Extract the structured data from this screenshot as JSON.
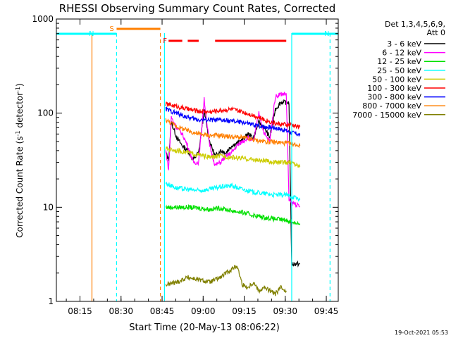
{
  "chart_data": {
    "type": "line",
    "title": "RHESSI Observing Summary Count Rates, Corrected",
    "ylabel_main": "Corrected Count Rate (s",
    "ylabel_sup1": "-1",
    "ylabel_mid": " detector",
    "ylabel_sup2": "-1",
    "ylabel_end": ")",
    "xlabel": "Start Time (20-May-13 08:06:22)",
    "timestamp": "19-Oct-2021 05:53",
    "xlim_minutes": [
      0,
      103
    ],
    "ylim": [
      1,
      1000
    ],
    "ylog": true,
    "x_ticks": [
      {
        "label": "08:15",
        "m": 8.63
      },
      {
        "label": "08:30",
        "m": 23.63
      },
      {
        "label": "08:45",
        "m": 38.63
      },
      {
        "label": "09:00",
        "m": 53.63
      },
      {
        "label": "09:15",
        "m": 68.63
      },
      {
        "label": "09:30",
        "m": 83.63
      },
      {
        "label": "09:45",
        "m": 98.63
      }
    ],
    "y_ticks": [
      {
        "label": "1",
        "v": 1
      },
      {
        "label": "10",
        "v": 10
      },
      {
        "label": "100",
        "v": 100
      },
      {
        "label": "1000",
        "v": 1000
      }
    ],
    "legend": {
      "placement": "right",
      "header1": "Det 1,3,4,5,6,9,",
      "header2": "Att 0",
      "entries": [
        {
          "name": "3 - 6 keV",
          "color": "#000000"
        },
        {
          "name": "6 - 12 keV",
          "color": "#ff00ff"
        },
        {
          "name": "12 - 25 keV",
          "color": "#00e000"
        },
        {
          "name": "25 - 50 keV",
          "color": "#00ffff"
        },
        {
          "name": "50 - 100 keV",
          "color": "#cccc00"
        },
        {
          "name": "100 - 300 keV",
          "color": "#ff0000"
        },
        {
          "name": "300 - 800 keV",
          "color": "#0000ff"
        },
        {
          "name": "800 - 7000 keV",
          "color": "#ff7f00"
        },
        {
          "name": "7000 - 15000 keV",
          "color": "#808000"
        }
      ]
    },
    "flags": [
      {
        "label": "S",
        "color": "#ff7f00",
        "start": 22.0,
        "end": 38.0
      },
      {
        "label": "N",
        "color": "#00ffff",
        "start": 0.0,
        "end": 22.0
      },
      {
        "label": "N",
        "color": "#00ffff",
        "start": 86.0,
        "end": 103.0
      },
      {
        "label": "F",
        "color": "#ff0000",
        "segments": [
          [
            41.0,
            46.0
          ],
          [
            48.0,
            52.0
          ],
          [
            58.0,
            84.0
          ]
        ]
      }
    ],
    "vertical_markers": [
      {
        "m": 13.0,
        "color": "#ff7f00",
        "style": "solid"
      },
      {
        "m": 22.0,
        "color": "#00ffff",
        "style": "dashed"
      },
      {
        "m": 38.0,
        "color": "#ff7f00",
        "style": "dashed"
      },
      {
        "m": 39.5,
        "color": "#00ffff",
        "style": "solid"
      },
      {
        "m": 86.0,
        "color": "#00ffff",
        "style": "solid"
      },
      {
        "m": 100.0,
        "color": "#00ffff",
        "style": "dashed"
      }
    ],
    "series": [
      {
        "name": "3 - 6 keV",
        "color": "#000000",
        "x": [
          40,
          41,
          42,
          44,
          46,
          48,
          50,
          52,
          54,
          56,
          58,
          60,
          62,
          64,
          66,
          68,
          70,
          72,
          74,
          76,
          78,
          80,
          82,
          84,
          85,
          86,
          86.5,
          89
        ],
        "y": [
          38,
          32,
          80,
          55,
          45,
          40,
          32,
          38,
          105,
          50,
          35,
          40,
          38,
          45,
          48,
          52,
          60,
          55,
          80,
          70,
          55,
          110,
          130,
          130,
          130,
          2.5,
          2.5,
          2.5
        ]
      },
      {
        "name": "6 - 12 keV",
        "color": "#ff00ff",
        "x": [
          40,
          41,
          42,
          44,
          46,
          48,
          50,
          52,
          54,
          56,
          58,
          60,
          62,
          64,
          66,
          68,
          70,
          72,
          74,
          76,
          78,
          80,
          82,
          84,
          85,
          86,
          87,
          89
        ],
        "y": [
          40,
          25,
          90,
          70,
          60,
          45,
          30,
          30,
          140,
          45,
          28,
          30,
          35,
          38,
          45,
          50,
          55,
          50,
          100,
          60,
          50,
          150,
          160,
          160,
          12,
          11,
          11,
          10
        ]
      },
      {
        "name": "12 - 25 keV",
        "color": "#00e000",
        "x": [
          40,
          44,
          48,
          52,
          56,
          60,
          64,
          68,
          72,
          76,
          80,
          84,
          86,
          88,
          89
        ],
        "y": [
          10,
          10,
          10,
          9.8,
          9.5,
          9.8,
          9.2,
          8.8,
          8.2,
          7.8,
          7.5,
          7.3,
          7,
          6.8,
          6.5
        ]
      },
      {
        "name": "25 - 50 keV",
        "color": "#00ffff",
        "x": [
          40,
          44,
          48,
          52,
          56,
          60,
          64,
          68,
          72,
          76,
          80,
          84,
          86,
          88,
          89
        ],
        "y": [
          18,
          16,
          15.5,
          15,
          15.5,
          16.5,
          17,
          15.5,
          14.5,
          14,
          13.5,
          13.5,
          13,
          12.5,
          12
        ]
      },
      {
        "name": "50 - 100 keV",
        "color": "#cccc00",
        "x": [
          40,
          44,
          48,
          52,
          56,
          60,
          64,
          68,
          72,
          76,
          80,
          84,
          86,
          88,
          89
        ],
        "y": [
          42,
          40,
          38,
          36,
          34,
          35,
          34,
          33,
          32,
          31,
          30,
          30,
          30,
          28,
          27
        ]
      },
      {
        "name": "100 - 300 keV",
        "color": "#ff0000",
        "x": [
          40,
          44,
          48,
          52,
          56,
          60,
          64,
          68,
          72,
          76,
          80,
          84,
          86,
          88,
          89
        ],
        "y": [
          125,
          118,
          110,
          105,
          103,
          107,
          110,
          103,
          95,
          85,
          78,
          75,
          75,
          72,
          72
        ]
      },
      {
        "name": "300 - 800 keV",
        "color": "#0000ff",
        "x": [
          40,
          44,
          48,
          52,
          56,
          60,
          64,
          68,
          72,
          76,
          80,
          84,
          86,
          88,
          89
        ],
        "y": [
          110,
          100,
          90,
          85,
          85,
          84,
          82,
          80,
          75,
          72,
          70,
          65,
          62,
          60,
          58
        ]
      },
      {
        "name": "800 - 7000 keV",
        "color": "#ff7f00",
        "x": [
          40,
          44,
          48,
          52,
          56,
          60,
          64,
          68,
          72,
          76,
          80,
          84,
          86,
          88,
          89
        ],
        "y": [
          85,
          72,
          65,
          60,
          58,
          58,
          56,
          55,
          52,
          50,
          49,
          48,
          47,
          46,
          45
        ]
      },
      {
        "name": "7000 - 15000 keV",
        "color": "#808000",
        "x": [
          40,
          44,
          48,
          52,
          56,
          60,
          64,
          66,
          68,
          70,
          72,
          74,
          76,
          78,
          80,
          82,
          84
        ],
        "y": [
          1.5,
          1.6,
          1.8,
          1.7,
          1.6,
          1.8,
          2.2,
          2.4,
          1.5,
          1.4,
          1.6,
          1.3,
          1.4,
          1.3,
          1.2,
          1.4,
          1.3
        ]
      }
    ]
  }
}
